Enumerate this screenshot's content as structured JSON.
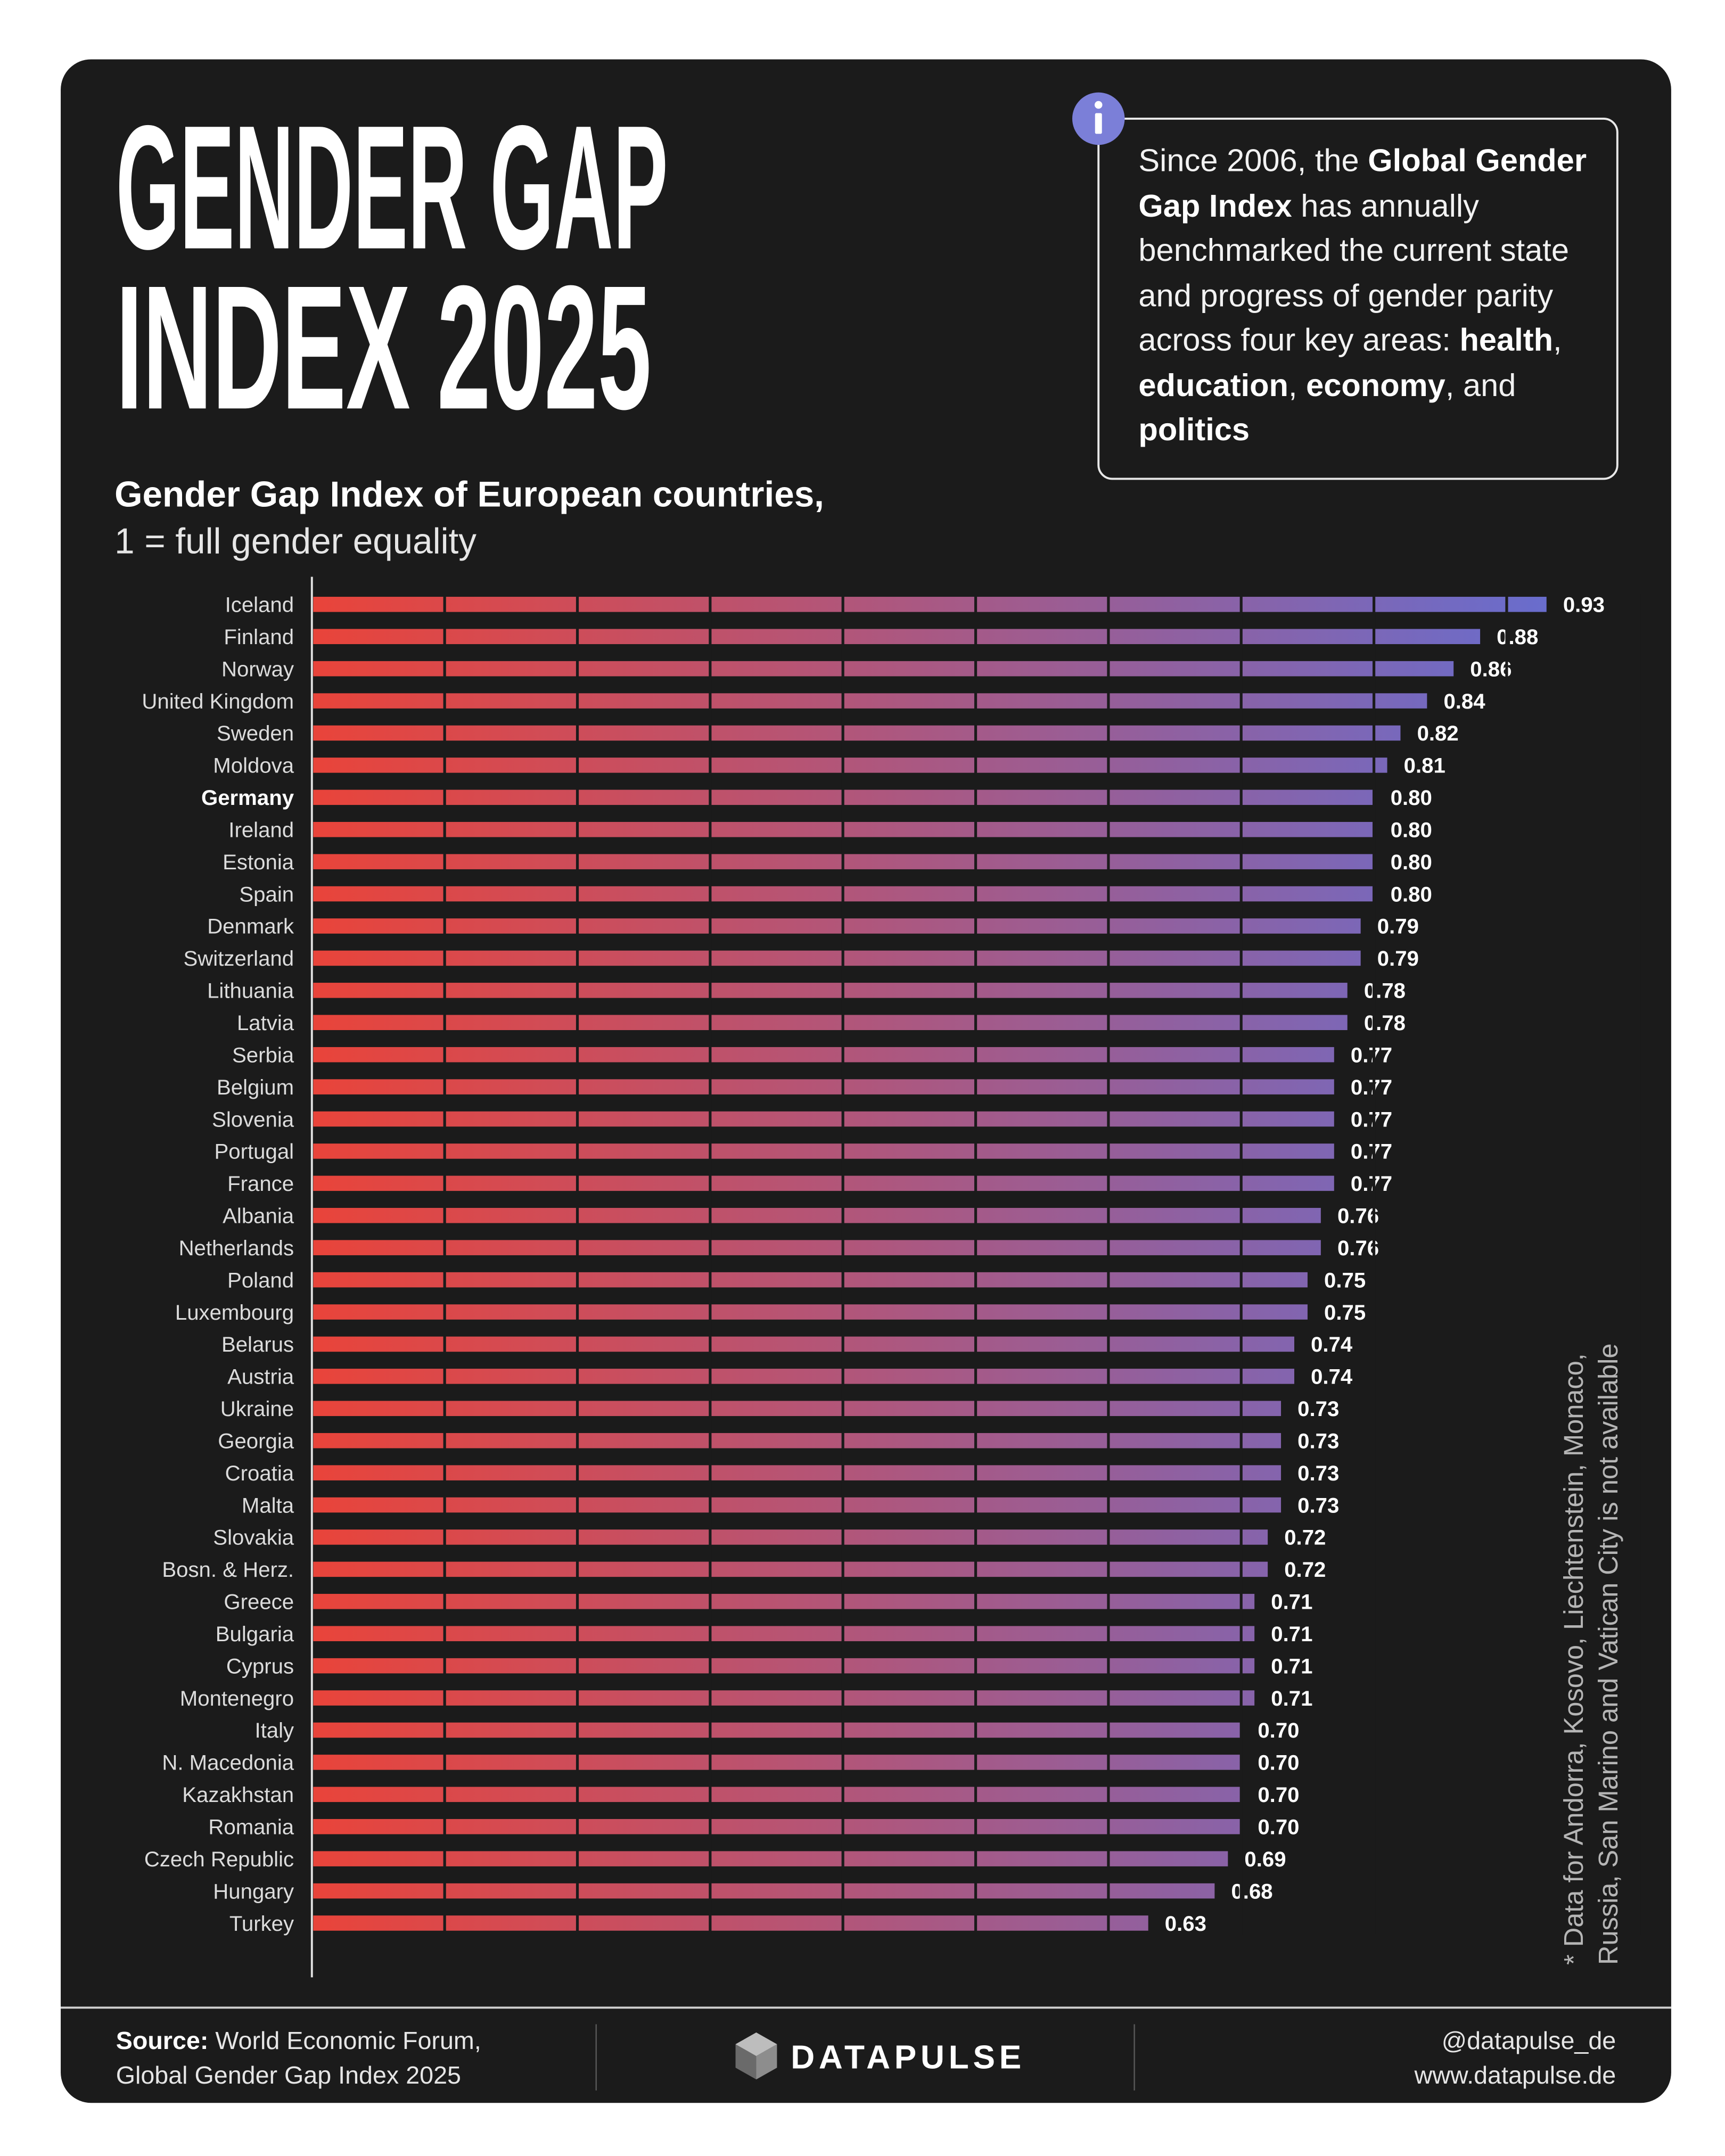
{
  "chart_data": {
    "type": "bar",
    "orientation": "horizontal",
    "title": [
      "GENDER GAP",
      "INDEX 2025"
    ],
    "subtitle": "Gender Gap Index of European countries,",
    "subtitle2": "1 = full gender equality",
    "note": [
      "* Data for Andorra, Kosovo, Liechtenstein, Monaco,",
      "Russia, San Marino and Vatican City is not available"
    ],
    "categories": [
      "Iceland",
      "Finland",
      "Norway",
      "United Kingdom",
      "Sweden",
      "Moldova",
      "Germany",
      "Ireland",
      "Estonia",
      "Spain",
      "Denmark",
      "Switzerland",
      "Lithuania",
      "Latvia",
      "Serbia",
      "Belgium",
      "Slovenia",
      "Portugal",
      "France",
      "Albania",
      "Netherlands",
      "Poland",
      "Luxembourg",
      "Belarus",
      "Austria",
      "Ukraine",
      "Georgia",
      "Croatia",
      "Malta",
      "Slovakia",
      "Bosn. & Herz.",
      "Greece",
      "Bulgaria",
      "Cyprus",
      "Montenegro",
      "Italy",
      "N. Macedonia",
      "Kazakhstan",
      "Romania",
      "Czech Republic",
      "Hungary",
      "Turkey"
    ],
    "values": [
      0.93,
      0.88,
      0.86,
      0.84,
      0.82,
      0.81,
      0.8,
      0.8,
      0.8,
      0.8,
      0.79,
      0.79,
      0.78,
      0.78,
      0.77,
      0.77,
      0.77,
      0.77,
      0.77,
      0.76,
      0.76,
      0.75,
      0.75,
      0.74,
      0.74,
      0.73,
      0.73,
      0.73,
      0.73,
      0.72,
      0.72,
      0.71,
      0.71,
      0.71,
      0.71,
      0.7,
      0.7,
      0.7,
      0.7,
      0.69,
      0.68,
      0.63
    ],
    "value_labels": [
      "0.93",
      "0.88",
      "0.86",
      "0.84",
      "0.82",
      "0.81",
      "0.80",
      "0.80",
      "0.80",
      "0.80",
      "0.79",
      "0.79",
      "0.78",
      "0.78",
      "0.77",
      "0.77",
      "0.77",
      "0.77",
      "0.77",
      "0.76",
      "0.76",
      "0.75",
      "0.75",
      "0.74",
      "0.74",
      "0.73",
      "0.73",
      "0.73",
      "0.73",
      "0.72",
      "0.72",
      "0.71",
      "0.71",
      "0.71",
      "0.71",
      "0.70",
      "0.70",
      "0.70",
      "0.70",
      "0.69",
      "0.68",
      "0.63"
    ],
    "highlight": "Germany",
    "xlim": [
      0,
      1
    ],
    "xticks": [
      0,
      0.1,
      0.2,
      0.3,
      0.4,
      0.5,
      0.6,
      0.7,
      0.8,
      0.9,
      1
    ],
    "grid": true,
    "color_gradient": [
      "#e9443a",
      "#5f70d8"
    ]
  },
  "info": [
    {
      "text": "Since 2006, the ",
      "bold": false
    },
    {
      "text": "Global Gender Gap Index",
      "bold": true
    },
    {
      "text": " has annually benchmarked the current state and progress of gender parity across four key areas: ",
      "bold": false
    },
    {
      "text": "health",
      "bold": true
    },
    {
      "text": ", ",
      "bold": false
    },
    {
      "text": "education",
      "bold": true
    },
    {
      "text": ", ",
      "bold": false
    },
    {
      "text": "economy",
      "bold": true
    },
    {
      "text": ", and ",
      "bold": false
    },
    {
      "text": "politics",
      "bold": true
    }
  ],
  "footer": {
    "source_label": "Source:",
    "source": [
      "World Economic Forum,",
      "Global Gender Gap Index 2025"
    ],
    "brand": "DATAPULSE",
    "handle": "@datapulse_de",
    "website": "www.datapulse.de"
  }
}
